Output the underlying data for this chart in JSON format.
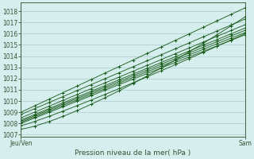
{
  "title": "Pression niveau de la mer( hPa )",
  "xlabel_jeuven": "Jeu/Ven",
  "xlabel_sam": "Sam",
  "ylim": [
    1006.8,
    1018.8
  ],
  "yticks": [
    1007,
    1008,
    1009,
    1010,
    1011,
    1012,
    1013,
    1014,
    1015,
    1016,
    1017,
    1018
  ],
  "xlim": [
    0,
    48
  ],
  "background_color": "#d6eeee",
  "grid_color": "#aacccc",
  "line_color": "#1a5c1a",
  "n_lines": 9,
  "n_points": 49
}
